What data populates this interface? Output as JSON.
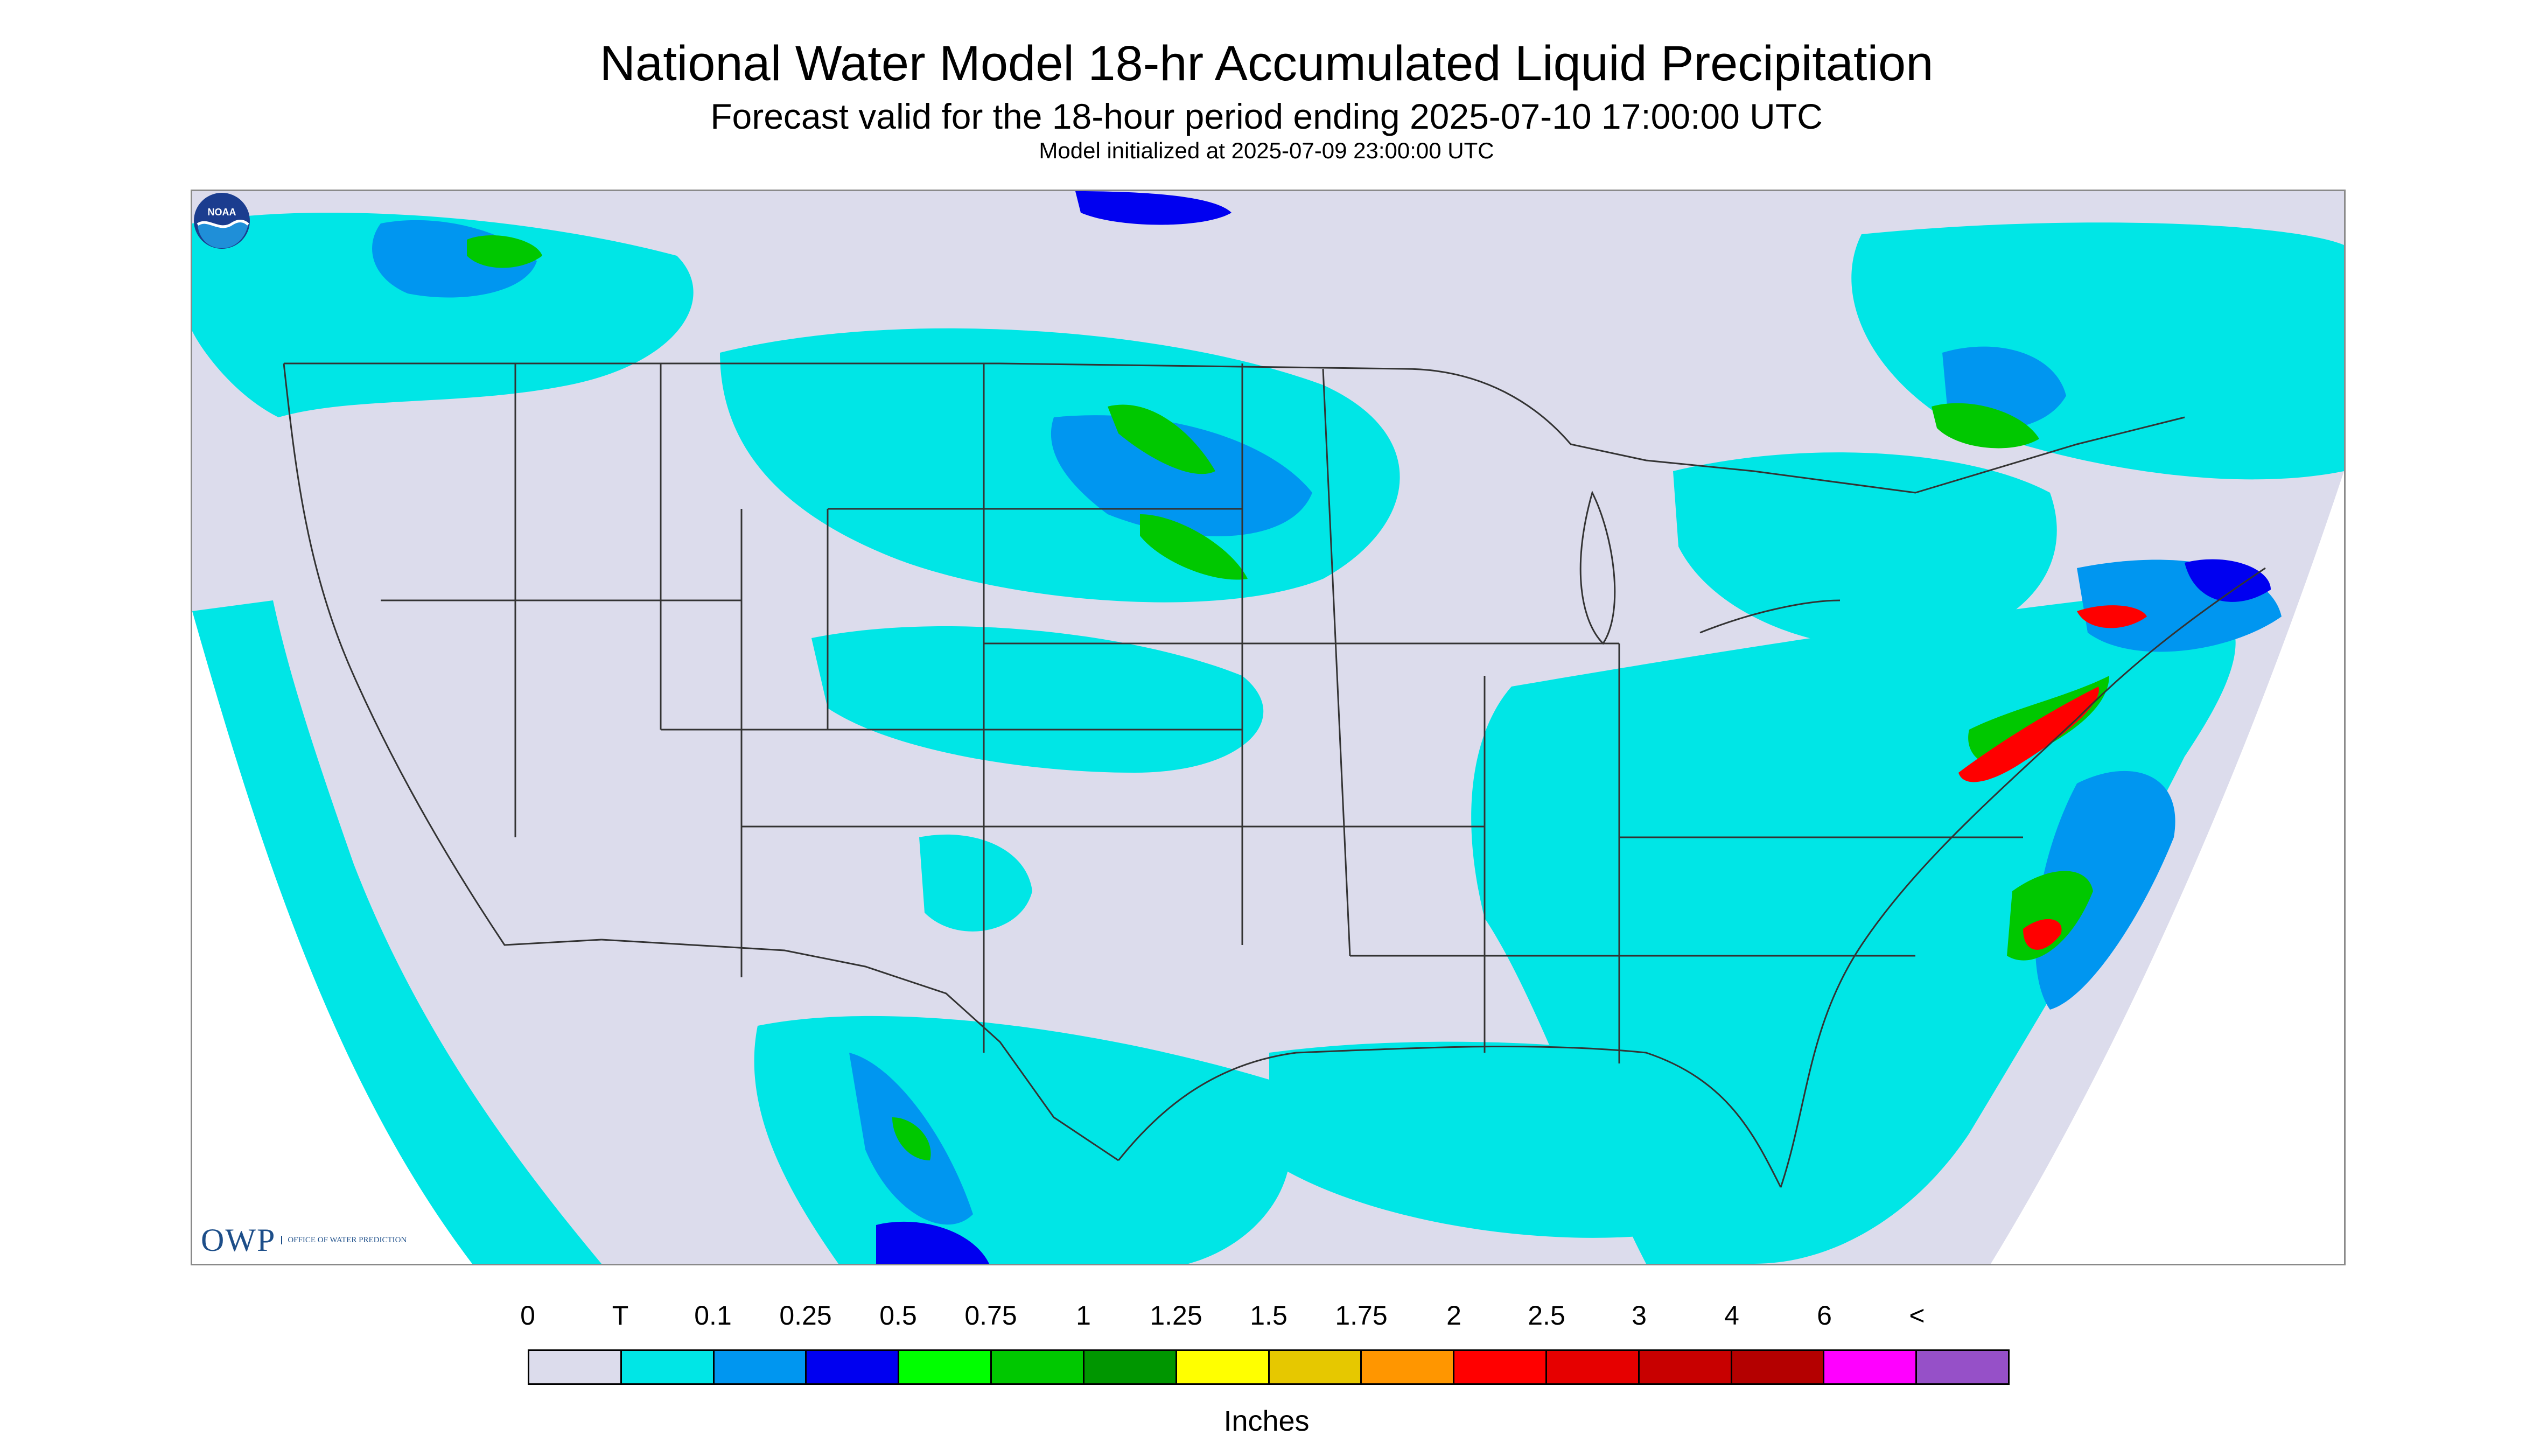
{
  "title": "National Water Model 18-hr Accumulated Liquid Precipitation",
  "subtitle": "Forecast valid for the 18-hour period ending 2025-07-10 17:00:00 UTC",
  "init_line": "Model initialized at 2025-07-09 23:00:00 UTC",
  "logos": {
    "owp_letters": "OWP",
    "owp_subtitle": "OFFICE OF WATER PREDICTION",
    "noaa_text": "NOAA"
  },
  "legend": {
    "labels": [
      "0",
      "T",
      "0.1",
      "0.25",
      "0.5",
      "0.75",
      "1",
      "1.25",
      "1.5",
      "1.75",
      "2",
      "2.5",
      "3",
      "4",
      "6",
      "<"
    ],
    "colors": [
      "#dcdcec",
      "#00e6e6",
      "#0096f0",
      "#0000f0",
      "#00ff00",
      "#00c800",
      "#009600",
      "#ffff00",
      "#e6c800",
      "#ff9600",
      "#ff0000",
      "#e60000",
      "#c80000",
      "#b40000",
      "#ff00ff",
      "#9650c8"
    ],
    "units": "Inches"
  },
  "map_colors": {
    "no_data": "#ffffff",
    "zero": "#dcdcec",
    "trace": "#00e6e6",
    "light": "#0096f0",
    "moderate": "#0000f0",
    "heavy_green": "#00c800",
    "very_heavy_red": "#ff0000",
    "boundaries": "#333333"
  }
}
